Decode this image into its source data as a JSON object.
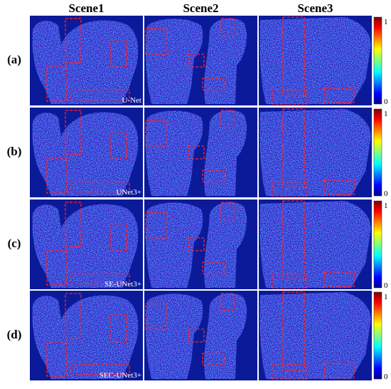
{
  "columns": [
    "Scene1",
    "Scene2",
    "Scene3"
  ],
  "rows": [
    {
      "label": "(a)",
      "method": "U-Net"
    },
    {
      "label": "(b)",
      "method": "UNet3+"
    },
    {
      "label": "(c)",
      "method": "SE-UNet3+"
    },
    {
      "label": "(d)",
      "method": "SEC-UNet3+"
    }
  ],
  "colorbar": {
    "max_label": "1",
    "min_label": "0"
  }
}
